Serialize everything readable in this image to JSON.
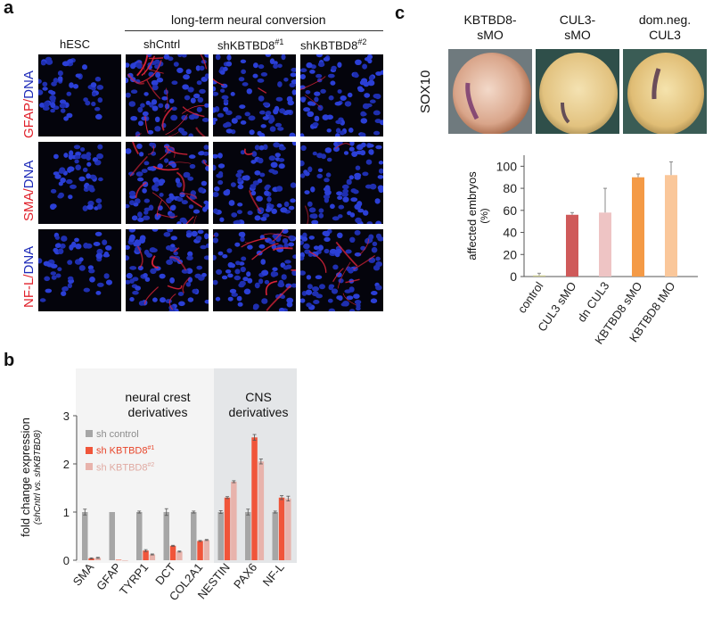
{
  "panel_a": {
    "letter": "a",
    "header": "long-term neural conversion",
    "columns": [
      "hESC",
      "shCntrl",
      "shKBTBD8",
      "shKBTBD8"
    ],
    "column_superscripts": [
      "",
      "",
      "#1",
      "#2"
    ],
    "rows": [
      {
        "red": "GFAP",
        "sep": "/",
        "blue": "DNA"
      },
      {
        "red": "SMA",
        "sep": "/",
        "blue": "DNA"
      },
      {
        "red": "NF-L",
        "sep": "/",
        "blue": "DNA"
      }
    ]
  },
  "panel_b": {
    "letter": "b",
    "group_labels": [
      {
        "line1": "neural crest",
        "line2": "derivatives"
      },
      {
        "line1": "CNS",
        "line2": "derivatives"
      }
    ],
    "ylabel": "fold change expression",
    "ylabel_sub": "(shCntrl vs. shKBTBD8)",
    "legend": [
      {
        "label": "sh control",
        "sup": "",
        "color": "#a6a6a6"
      },
      {
        "label": "sh KBTBD8",
        "sup": "#1",
        "color": "#f0553a"
      },
      {
        "label": "sh KBTBD8",
        "sup": "#2",
        "color": "#e8b3ac"
      }
    ]
  },
  "panel_c": {
    "letter": "c",
    "image_titles": [
      {
        "line1": "KBTBD8-",
        "line2": "sMO"
      },
      {
        "line1": "CUL3-",
        "line2": "sMO"
      },
      {
        "line1": "dom.neg.",
        "line2": "CUL3"
      }
    ],
    "row_label": "SOX10",
    "ylabel": "affected embryos",
    "ylabel_sub": "(%)"
  },
  "chart_data": [
    {
      "type": "bar",
      "panel": "b",
      "categories": [
        "SMA",
        "GFAP",
        "TYRP1",
        "DCT",
        "COL2A1",
        "NESTIN",
        "PAX6",
        "NF-L"
      ],
      "series": [
        {
          "name": "sh control",
          "values": [
            1.0,
            1.0,
            1.0,
            1.0,
            1.0,
            1.0,
            1.0,
            1.0
          ],
          "errors": [
            0.06,
            0.0,
            0.02,
            0.07,
            0.02,
            0.03,
            0.06,
            0.02
          ]
        },
        {
          "name": "sh KBTBD8#1",
          "values": [
            0.04,
            0.01,
            0.2,
            0.3,
            0.4,
            1.3,
            2.55,
            1.3
          ],
          "errors": [
            0.01,
            0.0,
            0.02,
            0.01,
            0.01,
            0.02,
            0.06,
            0.04
          ]
        },
        {
          "name": "sh KBTBD8#2",
          "values": [
            0.05,
            0.0,
            0.12,
            0.18,
            0.42,
            1.63,
            2.05,
            1.28
          ],
          "errors": [
            0.01,
            0.0,
            0.01,
            0.01,
            0.01,
            0.02,
            0.05,
            0.05
          ]
        }
      ],
      "yticks": [
        "0",
        "1",
        "2",
        "3"
      ],
      "ylim": [
        0,
        3
      ],
      "grid": false,
      "legend_position": "top-left"
    },
    {
      "type": "bar",
      "panel": "c",
      "categories": [
        "control",
        "CUL3 sMO",
        "dn CUL3",
        "KBTBD8 sMO",
        "KBTBD8 tMO"
      ],
      "values": [
        1,
        56,
        58,
        90,
        92
      ],
      "errors": [
        2,
        2,
        22,
        3,
        12
      ],
      "colors": [
        "#c8c88c",
        "#cf5a5a",
        "#eec4c4",
        "#f49a46",
        "#fac79a"
      ],
      "yticks": [
        "0",
        "20",
        "40",
        "60",
        "80",
        "100"
      ],
      "ylim": [
        0,
        110
      ],
      "grid": false
    }
  ]
}
